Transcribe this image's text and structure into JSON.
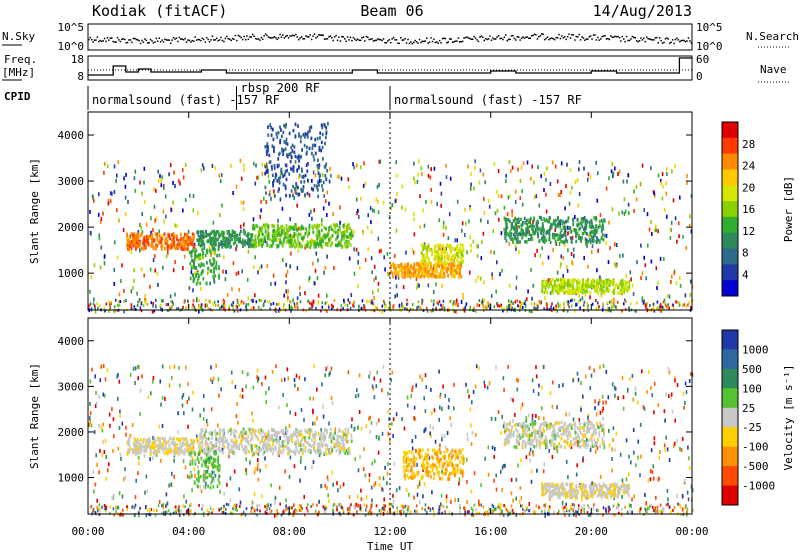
{
  "header": {
    "site": "Kodiak (fitACF)",
    "beam": "Beam 06",
    "date": "14/Aug/2013"
  },
  "noise_panel": {
    "left_label": "N.Sky",
    "right_label": "N.Search",
    "left_ticks": [
      "10^5",
      "10^0"
    ],
    "right_ticks": [
      "10^5",
      "10^0"
    ]
  },
  "freq_panel": {
    "left_label_1": "Freq.",
    "left_label_2": "[MHz]",
    "right_label": "Nave",
    "left_ticks": [
      "18",
      "8"
    ],
    "right_ticks": [
      "60",
      "0"
    ]
  },
  "cpid_panel": {
    "label": "CPID",
    "segments": [
      {
        "text": "normalsound (fast) -157 RF",
        "start_hour": 0.0
      },
      {
        "text": "rbsp 200 RF",
        "start_hour": 5.9
      },
      {
        "text": "normalsound (fast) -157 RF",
        "start_hour": 12.0
      }
    ]
  },
  "power_colorbar": {
    "title": "Power [dB]",
    "ticks": [
      "28",
      "24",
      "20",
      "16",
      "12",
      "8",
      "4"
    ],
    "colors": [
      "#e00000",
      "#ff3a00",
      "#ff8a00",
      "#ffc800",
      "#d6e600",
      "#8ad000",
      "#2fae2f",
      "#2e8a5a",
      "#2e6a8a",
      "#1f3aa8",
      "#0000d0"
    ]
  },
  "velocity_colorbar": {
    "title": "Velocity [m s⁻¹]",
    "ticks": [
      "1000",
      "500",
      "100",
      "25",
      "-25",
      "-100",
      "-500",
      "-1000"
    ],
    "colors": [
      "#1f3aa8",
      "#2e6aa0",
      "#2e8a5a",
      "#56c232",
      "#c8c8c8",
      "#ffd000",
      "#ff9000",
      "#ff4a00",
      "#e00000"
    ]
  },
  "chart_data": {
    "type": "heatmap",
    "xlabel": "Time UT",
    "ylabel": "Slant Range [km]",
    "x_ticks": [
      "00:00",
      "04:00",
      "08:00",
      "12:00",
      "16:00",
      "20:00",
      "00:00"
    ],
    "x_range_hours": [
      0,
      24
    ],
    "y_range_km": [
      200,
      4500
    ],
    "y_ticks": [
      1000,
      2000,
      3000,
      4000
    ],
    "panels": [
      {
        "quantity": "Power",
        "units": "dB",
        "scale": [
          0,
          30
        ],
        "features": [
          {
            "t0": 1.5,
            "t1": 4.2,
            "r0": 1550,
            "r1": 1900,
            "value": 24
          },
          {
            "t0": 4.3,
            "t1": 6.5,
            "r0": 1600,
            "r1": 1950,
            "value": 10
          },
          {
            "t0": 6.5,
            "t1": 10.5,
            "r0": 1600,
            "r1": 2100,
            "value": 14
          },
          {
            "t0": 4.0,
            "t1": 5.2,
            "r0": 800,
            "r1": 1600,
            "value": 12
          },
          {
            "t0": 12.0,
            "t1": 14.8,
            "r0": 950,
            "r1": 1250,
            "value": 22
          },
          {
            "t0": 13.2,
            "t1": 14.9,
            "r0": 1250,
            "r1": 1650,
            "value": 18
          },
          {
            "t0": 16.5,
            "t1": 20.5,
            "r0": 1700,
            "r1": 2250,
            "value": 10
          },
          {
            "t0": 18.0,
            "t1": 21.5,
            "r0": 600,
            "r1": 900,
            "value": 16
          },
          {
            "t0": 7.0,
            "t1": 9.5,
            "r0": 2700,
            "r1": 4300,
            "value": 6
          }
        ]
      },
      {
        "quantity": "Velocity",
        "units": "m s-1",
        "scale": [
          -1000,
          1000
        ],
        "features": [
          {
            "t0": 1.5,
            "t1": 4.2,
            "r0": 1550,
            "r1": 1900,
            "value": -60
          },
          {
            "t0": 4.3,
            "t1": 10.5,
            "r0": 1550,
            "r1": 2100,
            "value": 0
          },
          {
            "t0": 4.0,
            "t1": 5.2,
            "r0": 800,
            "r1": 1600,
            "value": 200
          },
          {
            "t0": 12.5,
            "t1": 14.9,
            "r0": 1000,
            "r1": 1650,
            "value": -300
          },
          {
            "t0": 16.5,
            "t1": 20.5,
            "r0": 1700,
            "r1": 2250,
            "value": 0
          },
          {
            "t0": 18.0,
            "t1": 21.5,
            "r0": 600,
            "r1": 900,
            "value": -50
          }
        ]
      }
    ]
  }
}
